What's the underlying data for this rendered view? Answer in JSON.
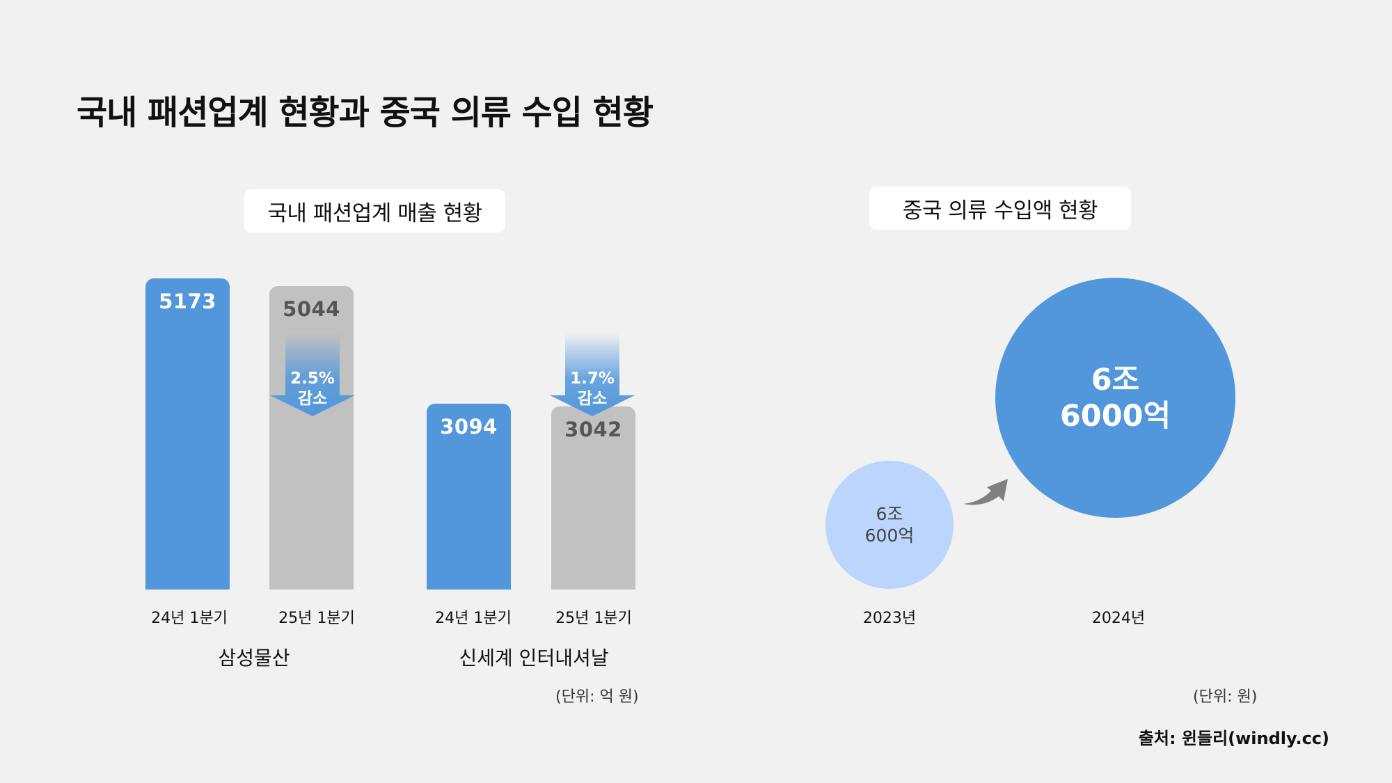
{
  "title": "국내 패션업계 현황과 중국 의류 수입 현황",
  "source": "출처: 윈들리(windly.cc)",
  "colors": {
    "blue": "#5297db",
    "gray": "#c1c1c1",
    "light_blue": "#bcd5fc",
    "background": "#f1f1f1",
    "arrow": "#808080"
  },
  "chart_data": [
    {
      "type": "bar",
      "title": "국내 패션업계 매출 현황",
      "unit": "(단위: 억 원)",
      "ylim": [
        0,
        5173
      ],
      "groups": [
        {
          "name": "삼성물산",
          "bars": [
            {
              "category": "24년 1분기",
              "value": 5173,
              "label": "5173",
              "color": "blue"
            },
            {
              "category": "25년 1분기",
              "value": 5044,
              "label": "5044",
              "color": "gray"
            }
          ],
          "change": {
            "rate": "2.5%",
            "text": "감소"
          }
        },
        {
          "name": "신세계 인터내셔날",
          "bars": [
            {
              "category": "24년 1분기",
              "value": 3094,
              "label": "3094",
              "color": "blue"
            },
            {
              "category": "25년 1분기",
              "value": 3042,
              "label": "3042",
              "color": "gray"
            }
          ],
          "change": {
            "rate": "1.7%",
            "text": "감소"
          }
        }
      ]
    },
    {
      "type": "bubble",
      "title": "중국 의류 수입액 현황",
      "unit": "(단위: 원)",
      "points": [
        {
          "year": "2023년",
          "value": 60600,
          "label_line1": "6조",
          "label_line2": "600억"
        },
        {
          "year": "2024년",
          "value": 66000,
          "label_line1": "6조",
          "label_line2": "6000억"
        }
      ]
    }
  ]
}
